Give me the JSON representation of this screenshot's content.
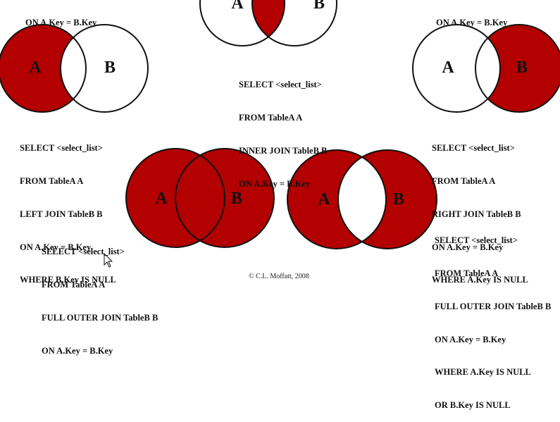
{
  "diagrams": [
    {
      "id": "top-left-fragment",
      "sql_lines": [
        "ON A.Key = B.Key"
      ]
    },
    {
      "id": "inner-join",
      "labels": {
        "a": "A",
        "b": "B"
      },
      "sql_lines": [
        "SELECT <select_list>",
        "FROM TableA A",
        "INNER JOIN TableB B",
        "ON A.Key = B.Key"
      ]
    },
    {
      "id": "top-right-fragment",
      "sql_lines": [
        "ON A.Key = B.Key"
      ]
    },
    {
      "id": "left-join-exclusive",
      "labels": {
        "a": "A",
        "b": "B"
      },
      "sql_lines": [
        "SELECT <select_list>",
        "FROM TableA A",
        "LEFT JOIN TableB B",
        "ON A.Key = B.Key",
        "WHERE B.Key IS NULL"
      ]
    },
    {
      "id": "right-join-exclusive",
      "labels": {
        "a": "A",
        "b": "B"
      },
      "sql_lines": [
        "SELECT <select_list>",
        "FROM TableA A",
        "RIGHT JOIN TableB B",
        "ON A.Key = B.Key",
        "WHERE A.Key IS NULL"
      ]
    },
    {
      "id": "full-outer-join",
      "labels": {
        "a": "A",
        "b": "B"
      },
      "sql_lines": [
        "SELECT <select_list>",
        "FROM TableA A",
        "FULL OUTER JOIN TableB B",
        "ON A.Key = B.Key"
      ]
    },
    {
      "id": "full-outer-join-exclusive",
      "labels": {
        "a": "A",
        "b": "B"
      },
      "sql_lines": [
        "SELECT <select_list>",
        "FROM TableA A",
        "FULL OUTER JOIN TableB B",
        "ON A.Key = B.Key",
        "WHERE A.Key IS NULL",
        "OR B.Key IS NULL"
      ]
    }
  ],
  "copyright": "© C.L. Moffatt, 2008",
  "colors": {
    "fill": "#b30000",
    "stroke": "#111111",
    "background": "#ffffff"
  }
}
